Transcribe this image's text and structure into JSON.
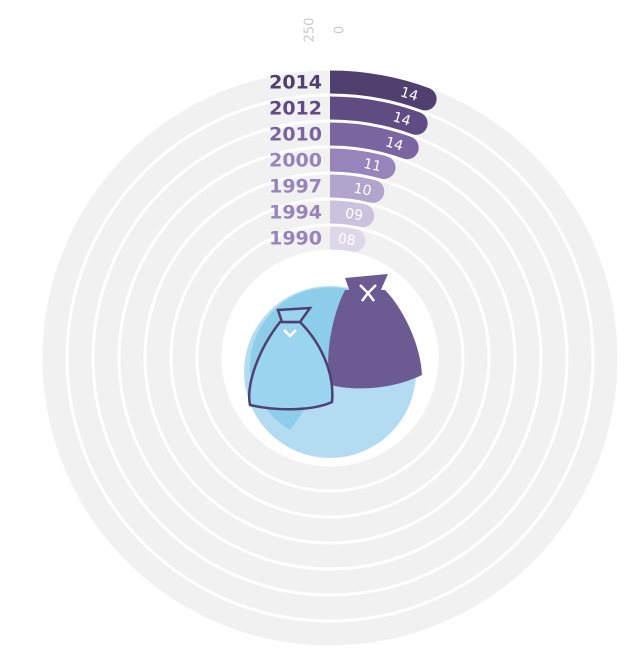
{
  "chart_data": {
    "type": "radial-bar",
    "categories": [
      "2014",
      "2012",
      "2010",
      "2000",
      "1997",
      "1994",
      "1990"
    ],
    "values": [
      14,
      14,
      14,
      11,
      10,
      9,
      8
    ],
    "value_labels": [
      "14",
      "14",
      "14",
      "11",
      "10",
      "09",
      "08"
    ],
    "colors": [
      "#4f406f",
      "#5f4c82",
      "#7a65a1",
      "#9684ba",
      "#b1a5cd",
      "#cbc3de",
      "#ddd8e9"
    ],
    "ylim": [
      0,
      250
    ],
    "yticks": [
      250,
      0
    ]
  }
}
